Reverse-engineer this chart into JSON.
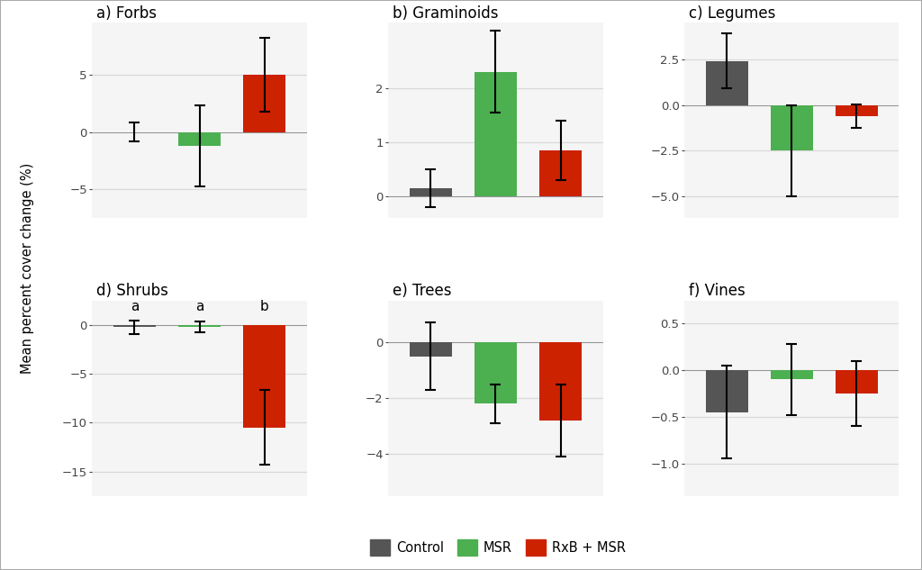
{
  "subplots": [
    {
      "title": "a) Forbs",
      "values": [
        0.0,
        -1.2,
        5.0
      ],
      "errors": [
        0.85,
        3.5,
        3.2
      ],
      "ylim": [
        -7.5,
        9.5
      ],
      "yticks": [
        -5,
        0,
        5
      ],
      "letters": null
    },
    {
      "title": "b) Graminoids",
      "values": [
        0.15,
        2.3,
        0.85
      ],
      "errors": [
        0.35,
        0.75,
        0.55
      ],
      "ylim": [
        -0.4,
        3.2
      ],
      "yticks": [
        0,
        1,
        2
      ],
      "letters": null
    },
    {
      "title": "c) Legumes",
      "values": [
        2.4,
        -2.5,
        -0.6
      ],
      "errors": [
        1.5,
        2.5,
        0.65
      ],
      "ylim": [
        -6.2,
        4.5
      ],
      "yticks": [
        -5.0,
        -2.5,
        0.0,
        2.5
      ],
      "letters": null
    },
    {
      "title": "d) Shrubs",
      "values": [
        -0.25,
        -0.2,
        -10.5
      ],
      "errors": [
        0.65,
        0.55,
        3.8
      ],
      "ylim": [
        -17.5,
        2.5
      ],
      "yticks": [
        -15,
        -10,
        -5,
        0
      ],
      "letters": [
        "a",
        "a",
        "b"
      ]
    },
    {
      "title": "e) Trees",
      "values": [
        -0.5,
        -2.2,
        -2.8
      ],
      "errors": [
        1.2,
        0.7,
        1.3
      ],
      "ylim": [
        -5.5,
        1.5
      ],
      "yticks": [
        -4,
        -2,
        0
      ],
      "letters": null
    },
    {
      "title": "f) Vines",
      "values": [
        -0.45,
        -0.1,
        -0.25
      ],
      "errors": [
        0.5,
        0.38,
        0.35
      ],
      "ylim": [
        -1.35,
        0.75
      ],
      "yticks": [
        -1.0,
        -0.5,
        0.0,
        0.5
      ],
      "letters": null
    }
  ],
  "colors": [
    "#555555",
    "#4caf50",
    "#cc2200"
  ],
  "legend_labels": [
    "Control",
    "MSR",
    "RxB + MSR"
  ],
  "ylabel": "Mean percent cover change (%)",
  "bar_width": 0.65,
  "background_color": "#f5f5f5",
  "grid_color": "#d9d9d9",
  "outer_bg": "#ffffff",
  "title_fontsize": 12,
  "label_fontsize": 10.5,
  "tick_fontsize": 9.5,
  "letter_fontsize": 11
}
